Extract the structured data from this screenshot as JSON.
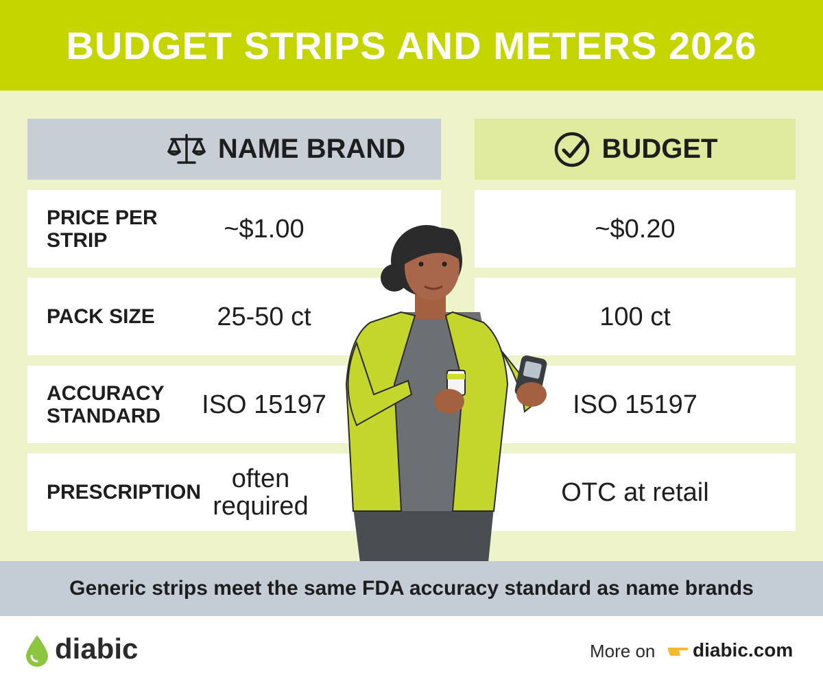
{
  "header": {
    "title": "BUDGET STRIPS AND METERS 2026"
  },
  "table": {
    "columns": [
      "NAME BRAND",
      "BUDGET"
    ],
    "rows": [
      [
        "PRICE PER STRIP",
        "~$1.00",
        "~$0.20"
      ],
      [
        "PACK SIZE",
        "25-50 ct",
        "100 ct"
      ],
      [
        "ACCURACY STANDARD",
        "ISO 15197",
        "ISO 15197"
      ],
      [
        "PRESCRIPTION",
        "often required",
        "OTC at retail"
      ]
    ]
  },
  "footer": {
    "note": "Generic strips meet the same FDA accuracy standard as name brands",
    "brand": "diabic",
    "more": "More on",
    "link": "diabic.com"
  }
}
